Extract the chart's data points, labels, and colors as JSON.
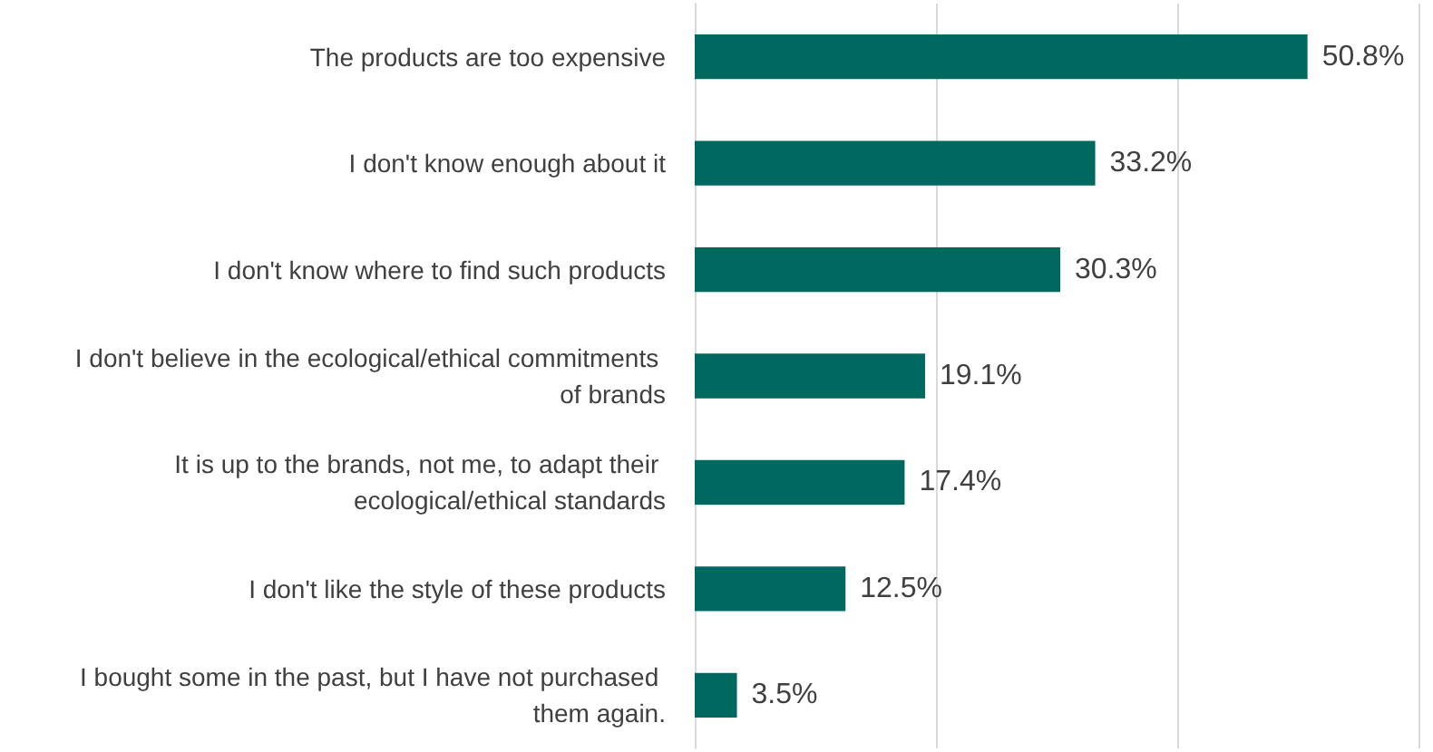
{
  "chart_data": {
    "type": "bar",
    "orientation": "horizontal",
    "categories": [
      "The products are too expensive",
      "I don't know enough about it",
      "I don't know where to find such products",
      "I don't believe in the ecological/ethical commitments of brands",
      "It is up to the brands, not me, to adapt their ecological/ethical standards",
      "I don't like the style of these products",
      "I bought some in the past, but I have not purchased them again."
    ],
    "values": [
      50.8,
      33.2,
      30.3,
      19.1,
      17.4,
      12.5,
      3.5
    ],
    "value_labels": [
      "50.8%",
      "33.2%",
      "30.3%",
      "19.1%",
      "17.4%",
      "12.5%",
      "3.5%"
    ],
    "color": "#00695f",
    "xlim": [
      0,
      60
    ],
    "xticks": [
      {
        "value": 0,
        "label": null
      },
      {
        "value": 20,
        "label": null
      },
      {
        "value": 40,
        "label": null
      },
      {
        "value": 60,
        "label": null
      }
    ],
    "tick_labels": "y",
    "grid": "x"
  }
}
